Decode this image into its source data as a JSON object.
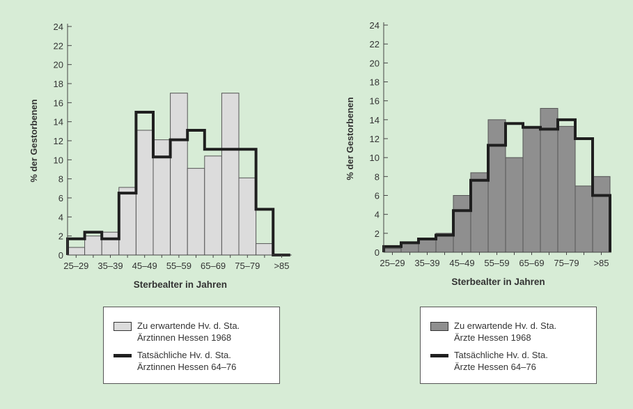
{
  "colors": {
    "background": "#d7ecd6",
    "bar_light": "#dcdcdc",
    "bar_dark": "#8f8f8f",
    "step_line": "#1f1f1f",
    "axis": "#444444",
    "text": "#333333"
  },
  "chart_data": [
    {
      "type": "bar",
      "bar_color": "#dcdcdc",
      "xlabel": "Sterbealter in Jahren",
      "ylabel": "% der Gestorbenen",
      "ylim": [
        0,
        24
      ],
      "yticks": [
        "0",
        "2",
        "4",
        "6",
        "8",
        "10",
        "12",
        "14",
        "16",
        "18",
        "20",
        "22",
        "24"
      ],
      "tick_labels": [
        "25–29",
        "35–39",
        "45–49",
        "55–59",
        "65–69",
        "75–79",
        ">85"
      ],
      "categories": [
        "25–29",
        "30–34",
        "35–39",
        "40–44",
        "45–49",
        "50–54",
        "55–59",
        "60–64",
        "65–69",
        "70–74",
        "75–79",
        "80–84",
        ">85"
      ],
      "series": [
        {
          "name": "Zu erwartende Hv. d. Sta. Ärztinnen Hessen 1968",
          "kind": "bar",
          "values": [
            0.8,
            2.0,
            2.4,
            7.1,
            13.1,
            12.1,
            17.0,
            9.1,
            10.4,
            17.0,
            8.1,
            1.2,
            0
          ]
        },
        {
          "name": "Tatsächliche Hv. d. Sta. Ärztinnen Hessen 64–76",
          "kind": "step",
          "values": [
            1.7,
            2.4,
            1.7,
            6.5,
            15.0,
            10.3,
            12.1,
            13.1,
            11.1,
            11.1,
            11.1,
            4.8,
            0
          ]
        }
      ],
      "legend": {
        "box_label_1": "Zu erwartende Hv. d. Sta.",
        "box_label_2": "Ärztinnen Hessen 1968",
        "line_label_1": "Tatsächliche Hv. d. Sta.",
        "line_label_2": "Ärztinnen Hessen 64–76"
      }
    },
    {
      "type": "bar",
      "bar_color": "#8f8f8f",
      "xlabel": "Sterbealter in Jahren",
      "ylabel": "% der Gestorbenen",
      "ylim": [
        0,
        24
      ],
      "yticks": [
        "0",
        "2",
        "4",
        "6",
        "8",
        "10",
        "12",
        "14",
        "16",
        "18",
        "20",
        "22",
        "24"
      ],
      "tick_labels": [
        "25–29",
        "35–39",
        "45–49",
        "55–59",
        "65–69",
        "75–79",
        ">85"
      ],
      "categories": [
        "25–29",
        "30–34",
        "35–39",
        "40–44",
        "45–49",
        "50–54",
        "55–59",
        "60–64",
        "65–69",
        "70–74",
        "75–79",
        "80–84",
        ">85"
      ],
      "series": [
        {
          "name": "Zu erwartende Hv. d. Sta. Ärzte Hessen 1968",
          "kind": "bar",
          "values": [
            0.4,
            0.9,
            1.3,
            2.0,
            6.0,
            8.4,
            14.0,
            10.0,
            13.1,
            15.2,
            13.3,
            7.0,
            8.0
          ]
        },
        {
          "name": "Tatsächliche Hv. d. Sta. Ärzte Hessen 64–76",
          "kind": "step",
          "values": [
            0.6,
            1.0,
            1.4,
            1.8,
            4.4,
            7.6,
            11.3,
            13.6,
            13.2,
            13.0,
            14.0,
            12.0,
            6.0
          ]
        }
      ],
      "legend": {
        "box_label_1": "Zu erwartende Hv. d. Sta.",
        "box_label_2": "Ärzte Hessen 1968",
        "line_label_1": "Tatsächliche Hv. d. Sta.",
        "line_label_2": "Ärzte Hessen 64–76"
      }
    }
  ]
}
